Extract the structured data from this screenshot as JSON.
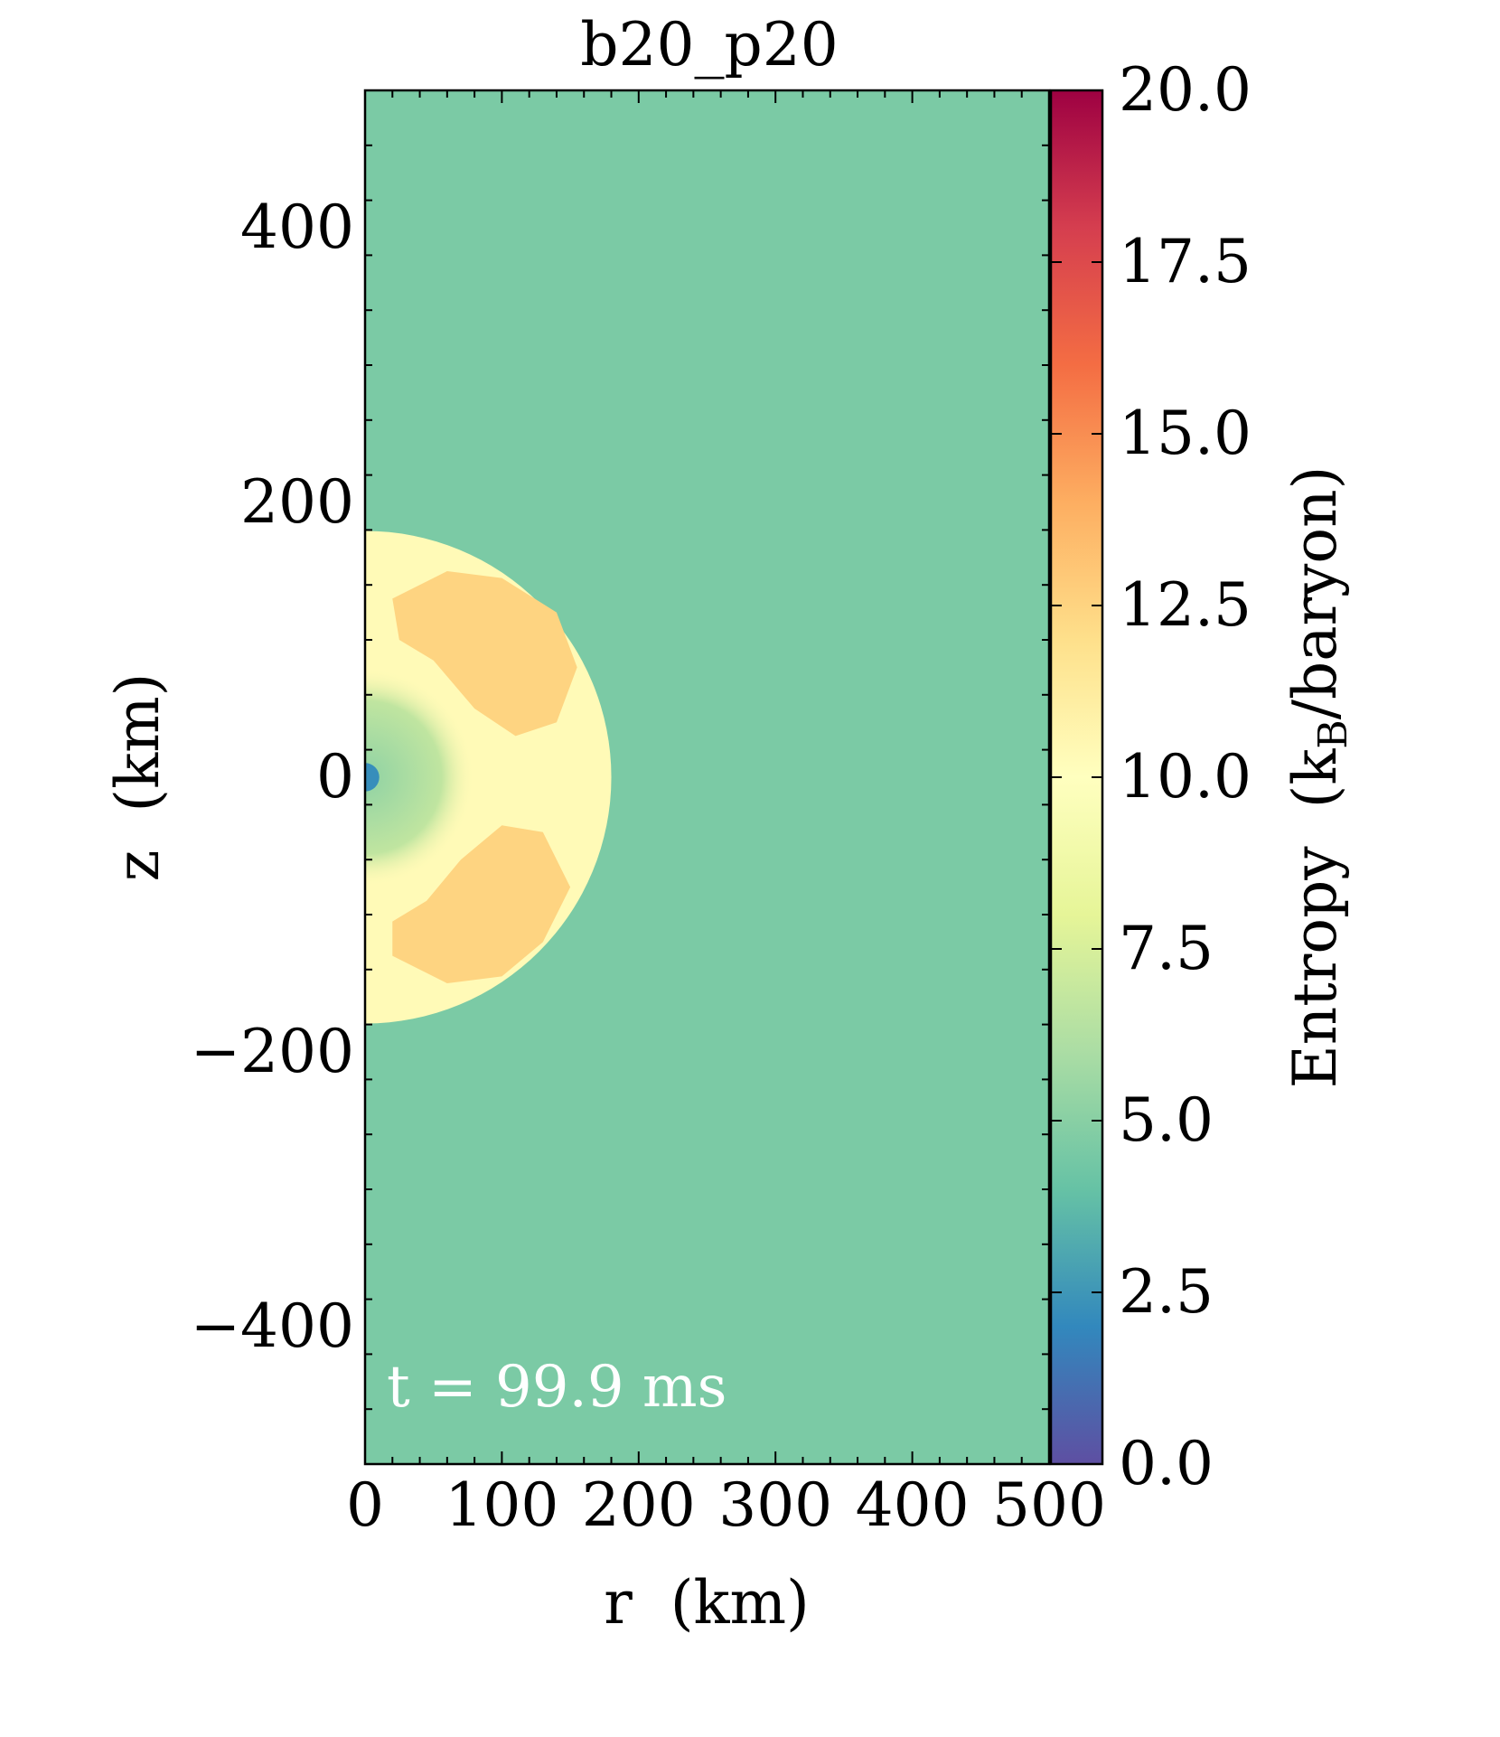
{
  "chart_data": {
    "type": "heatmap",
    "title": "b20_p20",
    "xlabel": "r  (km)",
    "ylabel": "z  (km)",
    "xlim": [
      0,
      500
    ],
    "ylim": [
      -500,
      500
    ],
    "x_ticks": [
      0,
      100,
      200,
      300,
      400,
      500
    ],
    "y_ticks": [
      -400,
      -200,
      0,
      200,
      400
    ],
    "y_tick_labels": [
      "−400",
      "−200",
      "0",
      "200",
      "400"
    ],
    "annotation": "t = 99.9 ms",
    "background_value": 4.6,
    "shock_radius_km": 180,
    "core_radius_km": 8,
    "field": [
      {
        "region": "background",
        "entropy": 4.6
      },
      {
        "region": "post-shock shell (r < 180 km)",
        "entropy": 10.3
      },
      {
        "region": "convective plumes",
        "entropy": 12.5
      },
      {
        "region": "inner layer (r < 80 km)",
        "entropy": 5.2
      },
      {
        "region": "proto-neutron star (r < 8 km)",
        "entropy": 2.2
      }
    ],
    "colorbar": {
      "label_main": "Entropy  (k",
      "label_sub": "B",
      "label_end": "/baryon)",
      "range": [
        0.0,
        20.0
      ],
      "ticks": [
        0.0,
        2.5,
        5.0,
        7.5,
        10.0,
        12.5,
        15.0,
        17.5,
        20.0
      ],
      "tick_labels": [
        "0.0",
        "2.5",
        "5.0",
        "7.5",
        "10.0",
        "12.5",
        "15.0",
        "17.5",
        "20.0"
      ],
      "colormap": "Spectral_r",
      "colors": [
        "#5e4fa2",
        "#3288bd",
        "#66c2a5",
        "#abdda4",
        "#e6f598",
        "#ffffbf",
        "#fee08b",
        "#fdae61",
        "#f46d43",
        "#d53e4f",
        "#9e0142"
      ]
    }
  }
}
